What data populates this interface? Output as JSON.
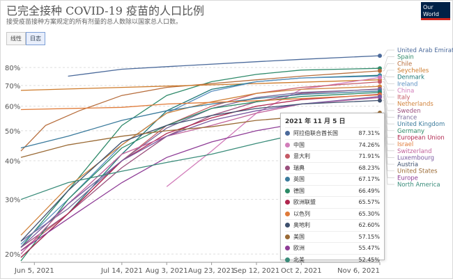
{
  "header": {
    "title": "已完全接种 COVID-19 疫苗的人口比例",
    "subtitle": "接受疫苗接种方案规定的所有剂量的总人数除以国家总人口数。",
    "logo_line1": "Our World",
    "logo_line2": "in Data"
  },
  "toggle": {
    "linear_label": "线性",
    "log_label": "日志",
    "active": "log"
  },
  "tooltip": {
    "date": "2021 年 11 月 5 日",
    "rows": [
      {
        "name": "阿拉伯联合酋长国",
        "value": "87.31%",
        "color": "#4b6a9b"
      },
      {
        "name": "中国",
        "value": "74.26%",
        "color": "#d27dba"
      },
      {
        "name": "意大利",
        "value": "71.91%",
        "color": "#c55a65"
      },
      {
        "name": "瑞典",
        "value": "68.23%",
        "color": "#9a4f7d"
      },
      {
        "name": "英国",
        "value": "67.17%",
        "color": "#3a7a9c"
      },
      {
        "name": "德国",
        "value": "66.49%",
        "color": "#2b8a66"
      },
      {
        "name": "欧洲联盟",
        "value": "65.57%",
        "color": "#b0264e"
      },
      {
        "name": "以色列",
        "value": "65.30%",
        "color": "#e07b39"
      },
      {
        "name": "奥地利",
        "value": "62.60%",
        "color": "#3d4f6d"
      },
      {
        "name": "美国",
        "value": "57.15%",
        "color": "#9a6a35"
      },
      {
        "name": "欧洲",
        "value": "55.47%",
        "color": "#8e3c96"
      },
      {
        "name": "北美",
        "value": "52.45%",
        "color": "#3a8c7a"
      }
    ]
  },
  "chart_data": {
    "type": "line",
    "title": "已完全接种 COVID-19 疫苗的人口比例",
    "yscale": "log",
    "x_ticks": [
      "Jun 5, 2021",
      "Jul 14, 2021",
      "Aug 3, 2021",
      "Aug 23, 2021",
      "Sep 12, 2021",
      "Oct 2, 2021",
      "Nov 6, 2021"
    ],
    "y_ticks": [
      "20%",
      "30%",
      "40%",
      "50%",
      "60%",
      "70%",
      "80%"
    ],
    "y_tick_values": [
      20,
      30,
      40,
      50,
      60,
      70,
      80
    ],
    "ylim": [
      19,
      92
    ],
    "xlim": [
      "2021-05-30",
      "2021-11-06"
    ],
    "grid": true,
    "legend_placement": "right",
    "series": [
      {
        "name": "United Arab Emirates",
        "color": "#4b6a9b",
        "points": [
          [
            "2021-06-20",
            75
          ],
          [
            "2021-07-14",
            79
          ],
          [
            "2021-08-03",
            80.5
          ],
          [
            "2021-09-12",
            83.5
          ],
          [
            "2021-10-02",
            85
          ],
          [
            "2021-11-06",
            87.31
          ]
        ]
      },
      {
        "name": "Spain",
        "color": "#2f8a6a",
        "points": [
          [
            "2021-05-30",
            21
          ],
          [
            "2021-06-20",
            32
          ],
          [
            "2021-07-14",
            52
          ],
          [
            "2021-08-03",
            65
          ],
          [
            "2021-08-23",
            72
          ],
          [
            "2021-09-12",
            76
          ],
          [
            "2021-10-02",
            78.5
          ],
          [
            "2021-11-06",
            79.5
          ]
        ]
      },
      {
        "name": "Chile",
        "color": "#b76e3d",
        "points": [
          [
            "2021-05-30",
            43
          ],
          [
            "2021-06-10",
            52
          ],
          [
            "2021-06-25",
            58
          ],
          [
            "2021-07-14",
            65
          ],
          [
            "2021-08-03",
            69
          ],
          [
            "2021-09-12",
            73
          ],
          [
            "2021-10-02",
            75
          ],
          [
            "2021-11-06",
            78
          ]
        ]
      },
      {
        "name": "Seychelles",
        "color": "#cd7a2a",
        "points": [
          [
            "2021-05-30",
            67.5
          ],
          [
            "2021-07-14",
            69
          ],
          [
            "2021-09-12",
            71
          ],
          [
            "2021-11-06",
            73
          ]
        ]
      },
      {
        "name": "Denmark",
        "color": "#1f7a7a",
        "points": [
          [
            "2021-05-30",
            19.5
          ],
          [
            "2021-06-20",
            27
          ],
          [
            "2021-07-14",
            42
          ],
          [
            "2021-08-03",
            58
          ],
          [
            "2021-08-23",
            68
          ],
          [
            "2021-09-12",
            72
          ],
          [
            "2021-10-02",
            74
          ],
          [
            "2021-11-06",
            75.5
          ]
        ]
      },
      {
        "name": "Ireland",
        "color": "#5a8fc1",
        "points": [
          [
            "2021-05-30",
            21.5
          ],
          [
            "2021-06-20",
            30
          ],
          [
            "2021-07-14",
            45
          ],
          [
            "2021-08-03",
            57
          ],
          [
            "2021-08-23",
            67
          ],
          [
            "2021-09-12",
            72
          ],
          [
            "2021-10-02",
            74
          ],
          [
            "2021-11-06",
            75
          ]
        ]
      },
      {
        "name": "China",
        "color": "#d27dba",
        "points": [
          [
            "2021-08-03",
            33
          ],
          [
            "2021-08-23",
            43
          ],
          [
            "2021-09-12",
            57
          ],
          [
            "2021-10-02",
            68
          ],
          [
            "2021-11-06",
            74.26
          ]
        ]
      },
      {
        "name": "Italy",
        "color": "#c55a65",
        "points": [
          [
            "2021-05-30",
            20.5
          ],
          [
            "2021-06-20",
            27
          ],
          [
            "2021-07-14",
            40
          ],
          [
            "2021-08-03",
            52
          ],
          [
            "2021-08-23",
            60
          ],
          [
            "2021-09-12",
            66
          ],
          [
            "2021-10-02",
            69
          ],
          [
            "2021-11-06",
            71.91
          ]
        ]
      },
      {
        "name": "Netherlands",
        "color": "#d1843d",
        "points": [
          [
            "2021-05-30",
            23
          ],
          [
            "2021-06-20",
            33
          ],
          [
            "2021-07-14",
            45
          ],
          [
            "2021-08-03",
            57
          ],
          [
            "2021-08-23",
            62
          ],
          [
            "2021-09-12",
            66
          ],
          [
            "2021-10-02",
            68
          ],
          [
            "2021-11-06",
            69.5
          ]
        ]
      },
      {
        "name": "Sweden",
        "color": "#9a4f7d",
        "points": [
          [
            "2021-05-30",
            21
          ],
          [
            "2021-06-20",
            27
          ],
          [
            "2021-07-14",
            38
          ],
          [
            "2021-08-03",
            48
          ],
          [
            "2021-08-23",
            56
          ],
          [
            "2021-09-12",
            62
          ],
          [
            "2021-10-02",
            66
          ],
          [
            "2021-11-06",
            68.23
          ]
        ]
      },
      {
        "name": "France",
        "color": "#7a6a9a",
        "points": [
          [
            "2021-05-30",
            22
          ],
          [
            "2021-06-20",
            28
          ],
          [
            "2021-07-14",
            40
          ],
          [
            "2021-08-03",
            51
          ],
          [
            "2021-08-23",
            59
          ],
          [
            "2021-09-12",
            64
          ],
          [
            "2021-10-02",
            66.5
          ],
          [
            "2021-11-06",
            68
          ]
        ]
      },
      {
        "name": "United Kingdom",
        "color": "#3a7a9c",
        "points": [
          [
            "2021-05-30",
            44
          ],
          [
            "2021-06-20",
            48
          ],
          [
            "2021-07-14",
            54
          ],
          [
            "2021-08-03",
            58
          ],
          [
            "2021-08-23",
            61
          ],
          [
            "2021-09-12",
            63.5
          ],
          [
            "2021-10-02",
            65.5
          ],
          [
            "2021-11-06",
            67.17
          ]
        ]
      },
      {
        "name": "Germany",
        "color": "#2b8a66",
        "points": [
          [
            "2021-05-30",
            19
          ],
          [
            "2021-06-20",
            30
          ],
          [
            "2021-07-14",
            44
          ],
          [
            "2021-08-03",
            52
          ],
          [
            "2021-08-23",
            59
          ],
          [
            "2021-09-12",
            62
          ],
          [
            "2021-10-02",
            64.5
          ],
          [
            "2021-11-06",
            66.49
          ]
        ]
      },
      {
        "name": "European Union",
        "color": "#b0264e",
        "points": [
          [
            "2021-05-30",
            19.5
          ],
          [
            "2021-06-20",
            27
          ],
          [
            "2021-07-14",
            40
          ],
          [
            "2021-08-03",
            49
          ],
          [
            "2021-08-23",
            55
          ],
          [
            "2021-09-12",
            60
          ],
          [
            "2021-10-02",
            63
          ],
          [
            "2021-11-06",
            65.57
          ]
        ]
      },
      {
        "name": "Israel",
        "color": "#e07b39",
        "points": [
          [
            "2021-05-30",
            58.5
          ],
          [
            "2021-07-14",
            59.5
          ],
          [
            "2021-08-03",
            61
          ],
          [
            "2021-09-12",
            62.5
          ],
          [
            "2021-10-02",
            63.5
          ],
          [
            "2021-11-06",
            65.3
          ]
        ]
      },
      {
        "name": "Switzerland",
        "color": "#c0609a",
        "points": [
          [
            "2021-05-30",
            20
          ],
          [
            "2021-06-20",
            29
          ],
          [
            "2021-07-14",
            42
          ],
          [
            "2021-08-03",
            48
          ],
          [
            "2021-08-23",
            52
          ],
          [
            "2021-09-12",
            57
          ],
          [
            "2021-10-02",
            61
          ],
          [
            "2021-11-06",
            64
          ]
        ]
      },
      {
        "name": "Luxembourg",
        "color": "#7a5aa0",
        "points": [
          [
            "2021-05-30",
            21
          ],
          [
            "2021-06-20",
            29
          ],
          [
            "2021-07-14",
            40
          ],
          [
            "2021-08-03",
            48
          ],
          [
            "2021-08-23",
            54
          ],
          [
            "2021-09-12",
            58
          ],
          [
            "2021-10-02",
            61
          ],
          [
            "2021-11-06",
            64.5
          ]
        ]
      },
      {
        "name": "Austria",
        "color": "#3d4f6d",
        "points": [
          [
            "2021-05-30",
            22
          ],
          [
            "2021-06-20",
            32
          ],
          [
            "2021-07-14",
            46
          ],
          [
            "2021-08-03",
            52
          ],
          [
            "2021-08-23",
            56
          ],
          [
            "2021-09-12",
            59
          ],
          [
            "2021-10-02",
            61
          ],
          [
            "2021-11-06",
            62.6
          ]
        ]
      },
      {
        "name": "United States",
        "color": "#9a6a35",
        "points": [
          [
            "2021-05-30",
            41
          ],
          [
            "2021-06-20",
            45
          ],
          [
            "2021-07-14",
            48
          ],
          [
            "2021-08-03",
            50
          ],
          [
            "2021-08-23",
            51.5
          ],
          [
            "2021-09-12",
            54
          ],
          [
            "2021-10-02",
            55.5
          ],
          [
            "2021-11-06",
            57.15
          ]
        ]
      },
      {
        "name": "Europe",
        "color": "#8e3c96",
        "points": [
          [
            "2021-05-30",
            20.5
          ],
          [
            "2021-06-20",
            26
          ],
          [
            "2021-07-14",
            34
          ],
          [
            "2021-08-03",
            41
          ],
          [
            "2021-08-23",
            46
          ],
          [
            "2021-09-12",
            50
          ],
          [
            "2021-10-02",
            53
          ],
          [
            "2021-11-06",
            55.47
          ]
        ]
      },
      {
        "name": "North America",
        "color": "#3a8c7a",
        "points": [
          [
            "2021-05-30",
            30
          ],
          [
            "2021-06-20",
            34
          ],
          [
            "2021-07-14",
            37
          ],
          [
            "2021-08-03",
            39.5
          ],
          [
            "2021-08-23",
            42
          ],
          [
            "2021-09-12",
            45.5
          ],
          [
            "2021-10-02",
            49
          ],
          [
            "2021-11-06",
            52.45
          ]
        ]
      }
    ]
  }
}
